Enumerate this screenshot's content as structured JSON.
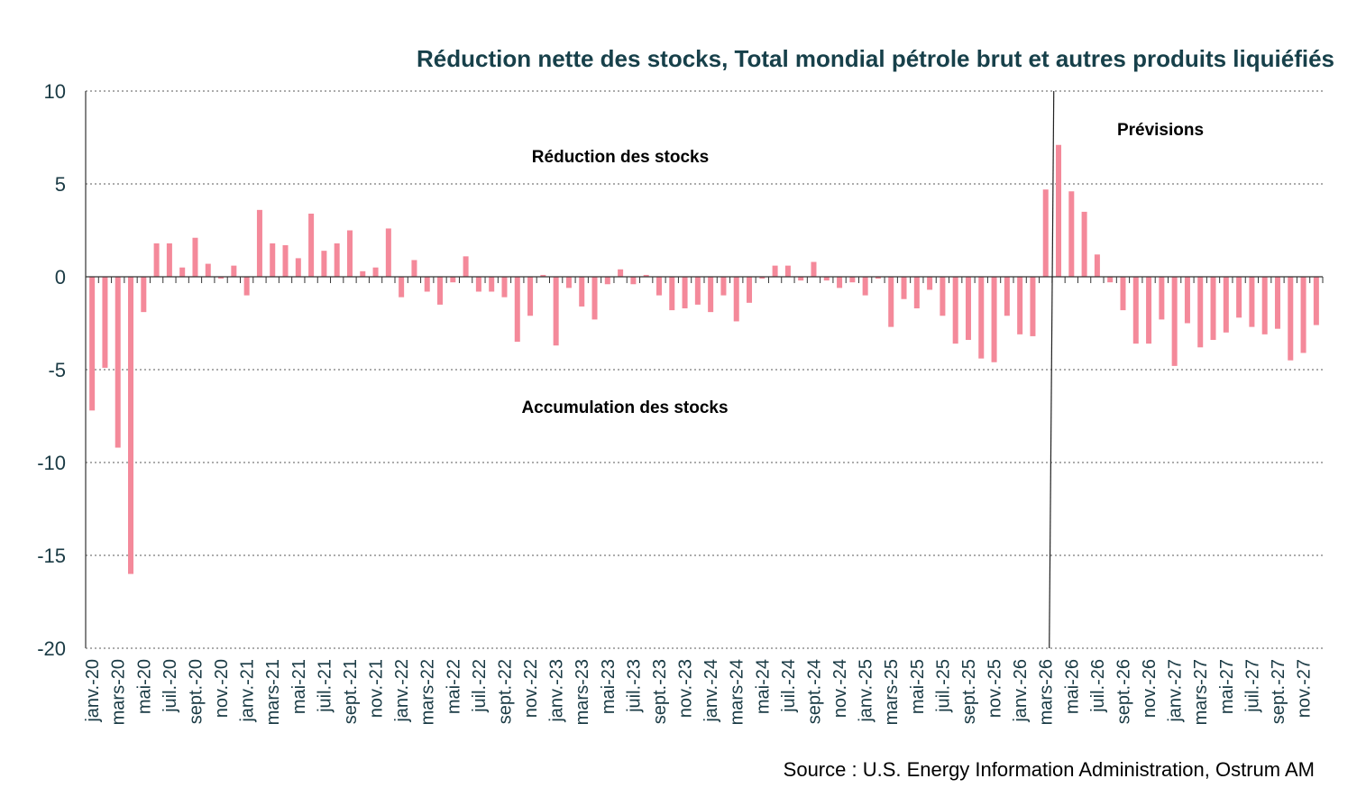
{
  "chart_data": {
    "type": "bar",
    "title": "Réduction nette des stocks, Total mondial pétrole brut et autres produits liquiéfiés",
    "source": "Source : U.S. Energy Information Administration, Ostrum AM",
    "annotations": {
      "reduction": "Réduction des stocks",
      "accumulation": "Accumulation des stocks",
      "forecast": "Prévisions"
    },
    "forecast_start": "mars-26",
    "ylim": [
      -20,
      10
    ],
    "yticks": [
      10,
      5,
      0,
      -5,
      -10,
      -15,
      -20
    ],
    "grid": true,
    "bar_color": "#f4899a",
    "title_color": "#17404a",
    "categories": [
      "janv.-20",
      "févr.-20",
      "mars-20",
      "avr.-20",
      "mai-20",
      "juin-20",
      "juil.-20",
      "août-20",
      "sept.-20",
      "oct.-20",
      "nov.-20",
      "déc.-20",
      "janv.-21",
      "févr.-21",
      "mars-21",
      "avr.-21",
      "mai-21",
      "juin-21",
      "juil.-21",
      "août-21",
      "sept.-21",
      "oct.-21",
      "nov.-21",
      "déc.-21",
      "janv.-22",
      "févr.-22",
      "mars-22",
      "avr.-22",
      "mai-22",
      "juin-22",
      "juil.-22",
      "août-22",
      "sept.-22",
      "oct.-22",
      "nov.-22",
      "déc.-22",
      "janv.-23",
      "févr.-23",
      "mars-23",
      "avr.-23",
      "mai-23",
      "juin-23",
      "juil.-23",
      "août-23",
      "sept.-23",
      "oct.-23",
      "nov.-23",
      "déc.-23",
      "janv.-24",
      "févr.-24",
      "mars-24",
      "avr.-24",
      "mai-24",
      "juin-24",
      "juil.-24",
      "août-24",
      "sept.-24",
      "oct.-24",
      "nov.-24",
      "déc.-24",
      "janv.-25",
      "févr.-25",
      "mars-25",
      "avr.-25",
      "mai-25",
      "juin-25",
      "juil.-25",
      "août-25",
      "sept.-25",
      "oct.-25",
      "nov.-25",
      "déc.-25",
      "janv.-26",
      "févr.-26",
      "mars-26",
      "avr.-26",
      "mai-26",
      "juin-26",
      "juil.-26",
      "août-26",
      "sept.-26",
      "oct.-26",
      "nov.-26",
      "déc.-26",
      "janv.-27",
      "févr.-27",
      "mars-27",
      "avr.-27",
      "mai-27",
      "juin-27",
      "juil.-27",
      "août-27",
      "sept.-27",
      "oct.-27",
      "nov.-27",
      "déc.-27"
    ],
    "x_tick_labels": [
      "janv.-20",
      "mars-20",
      "mai-20",
      "juil.-20",
      "sept.-20",
      "nov.-20",
      "janv.-21",
      "mars-21",
      "mai-21",
      "juil.-21",
      "sept.-21",
      "nov.-21",
      "janv.-22",
      "mars-22",
      "mai-22",
      "juil.-22",
      "sept.-22",
      "nov.-22",
      "janv.-23",
      "mars-23",
      "mai-23",
      "juil.-23",
      "sept.-23",
      "nov.-23",
      "janv.-24",
      "mars-24",
      "mai-24",
      "juil.-24",
      "sept.-24",
      "nov.-24",
      "janv.-25",
      "mars-25",
      "mai-25",
      "juil.-25",
      "sept.-25",
      "nov.-25",
      "janv.-26",
      "mars-26",
      "mai-26",
      "juil.-26",
      "sept.-26",
      "nov.-26",
      "janv.-27",
      "mars-27",
      "mai-27",
      "juil.-27",
      "sept.-27",
      "nov.-27"
    ],
    "values": [
      -7.2,
      -4.9,
      -9.2,
      -16.0,
      -1.9,
      1.8,
      1.8,
      0.5,
      2.1,
      0.7,
      -0.1,
      0.6,
      -1.0,
      3.6,
      1.8,
      1.7,
      1.0,
      3.4,
      1.4,
      1.8,
      2.5,
      0.3,
      0.5,
      2.6,
      -1.1,
      0.9,
      -0.8,
      -1.5,
      -0.3,
      1.1,
      -0.8,
      -0.8,
      -1.1,
      -3.5,
      -2.1,
      0.1,
      -3.7,
      -0.6,
      -1.6,
      -2.3,
      -0.4,
      0.4,
      -0.4,
      0.1,
      -1.0,
      -1.8,
      -1.7,
      -1.5,
      -1.9,
      -1.0,
      -2.4,
      -1.4,
      -0.1,
      0.6,
      0.6,
      -0.2,
      0.8,
      -0.2,
      -0.6,
      -0.3,
      -1.0,
      -0.1,
      -2.7,
      -1.2,
      -1.7,
      -0.7,
      -2.1,
      -3.6,
      -3.4,
      -4.4,
      -4.6,
      -2.1,
      -3.1,
      -3.2,
      4.7,
      7.1,
      4.6,
      3.5,
      1.2,
      -0.3,
      -1.8,
      -3.6,
      -3.6,
      -2.3,
      -4.8,
      -2.5,
      -3.8,
      -3.4,
      -3.0,
      -2.2,
      -2.7,
      -3.1,
      -2.8,
      -4.5,
      -4.1,
      -2.6
    ]
  }
}
